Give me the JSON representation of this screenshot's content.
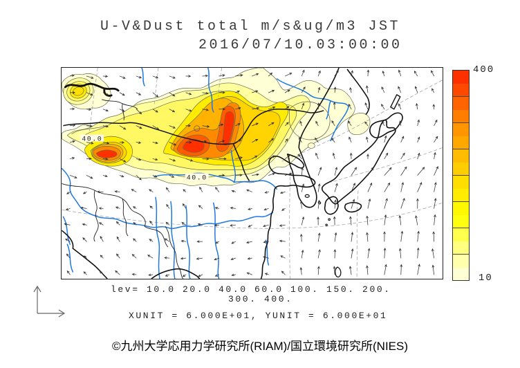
{
  "title": {
    "line1": "U-V&Dust total m/s&ug/m3 JST",
    "line2": "2016/07/10.03:00:00"
  },
  "colorbar": {
    "max_label": "400",
    "min_label": "10",
    "colors": [
      "#FF3000",
      "#FF4800",
      "#FF6400",
      "#FF7E00",
      "#FF9600",
      "#FFA800",
      "#FFBC00",
      "#FFCE00",
      "#FFDE00",
      "#FFEC00",
      "#FFF800",
      "#FFFF10",
      "#FFFF4D",
      "#FFFF80",
      "#FFFFAC",
      "#FFFFD4"
    ],
    "level_boundaries": [
      20,
      40,
      60,
      100,
      150,
      200,
      300
    ]
  },
  "map": {
    "contour_labels": [
      {
        "text": "40.0"
      },
      {
        "text": "40.0"
      }
    ]
  },
  "footer": {
    "levels_line1": "lev= 10.0 20.0 40.0 60.0 100. 150. 200.",
    "levels_line2": "300. 400.",
    "units_line": "XUNIT = 6.000E+01, YUNIT = 6.000E+01"
  },
  "credit": "©九州大学応用力学研究所(RIAM)/国立環境研究所(NIES)",
  "chart_data": {
    "type": "heatmap",
    "title": "U-V&Dust total m/s&ug/m3 JST",
    "timestamp": "2016/07/10.03:00:00",
    "shaded_variable": "Dust total concentration (ug/m3)",
    "vector_variable": "U-V wind (m/s)",
    "contour_levels": [
      10.0,
      20.0,
      40.0,
      60.0,
      100,
      150,
      200,
      300,
      400
    ],
    "colorbar_range": [
      10,
      400
    ],
    "vector_scaling": {
      "xunit": "6.000E+01",
      "yunit": "6.000E+01"
    },
    "legend_position": "right",
    "dust_maxima": [
      {
        "area": "north-central China / Mongolia plume core",
        "value": ">=400"
      },
      {
        "area": "northeastern plume core (comma shaped)",
        "value": ">=400"
      },
      {
        "area": "small western core",
        "value": ">=300"
      }
    ]
  }
}
